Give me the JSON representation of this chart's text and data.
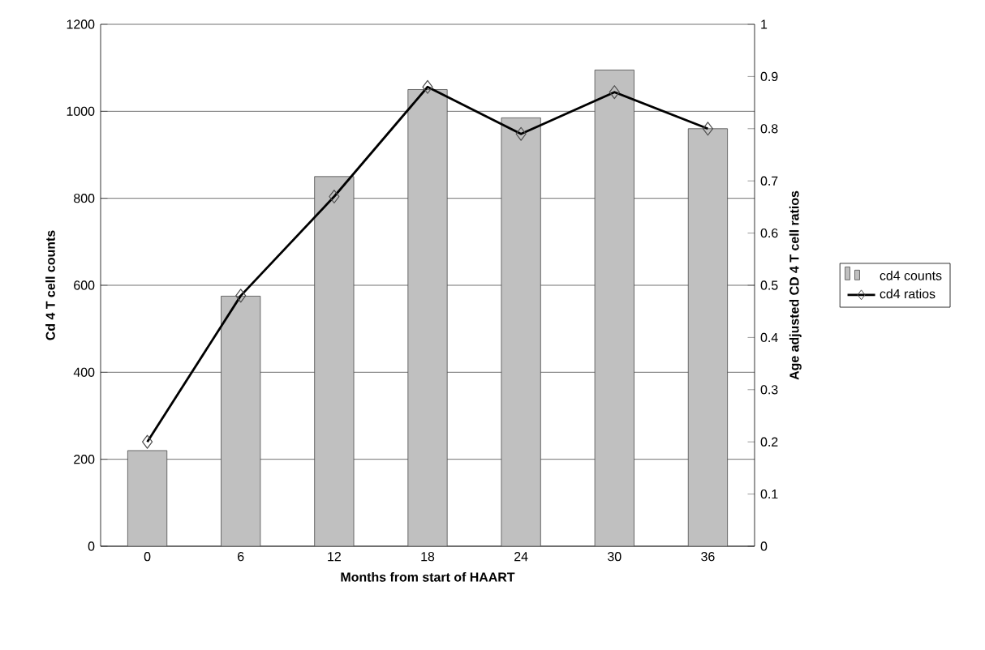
{
  "chart_data": {
    "type": "bar",
    "xlabel": "Months from start of HAART",
    "ylabel": "Cd 4 T cell counts",
    "y2label": "Age adjusted CD 4 T cell ratios",
    "categories": [
      "0",
      "6",
      "12",
      "18",
      "24",
      "30",
      "36"
    ],
    "series": [
      {
        "name": "cd4 counts",
        "color": "#c0c0c0",
        "values": [
          220,
          575,
          850,
          1050,
          985,
          1095,
          960
        ]
      },
      {
        "name": "cd4 ratios",
        "type": "line",
        "axis": "y2",
        "color": "#000000",
        "marker": "diamond",
        "values": [
          0.2,
          0.48,
          0.67,
          0.88,
          0.79,
          0.87,
          0.8
        ]
      }
    ],
    "ylim": [
      0,
      1200
    ],
    "yticks": [
      0,
      200,
      400,
      600,
      800,
      1000,
      1200
    ],
    "y2lim": [
      0,
      1
    ],
    "y2ticks": [
      0,
      0.1,
      0.2,
      0.3,
      0.4,
      0.5,
      0.6,
      0.7,
      0.8,
      0.9,
      1
    ],
    "grid": "y",
    "legend": "right"
  }
}
